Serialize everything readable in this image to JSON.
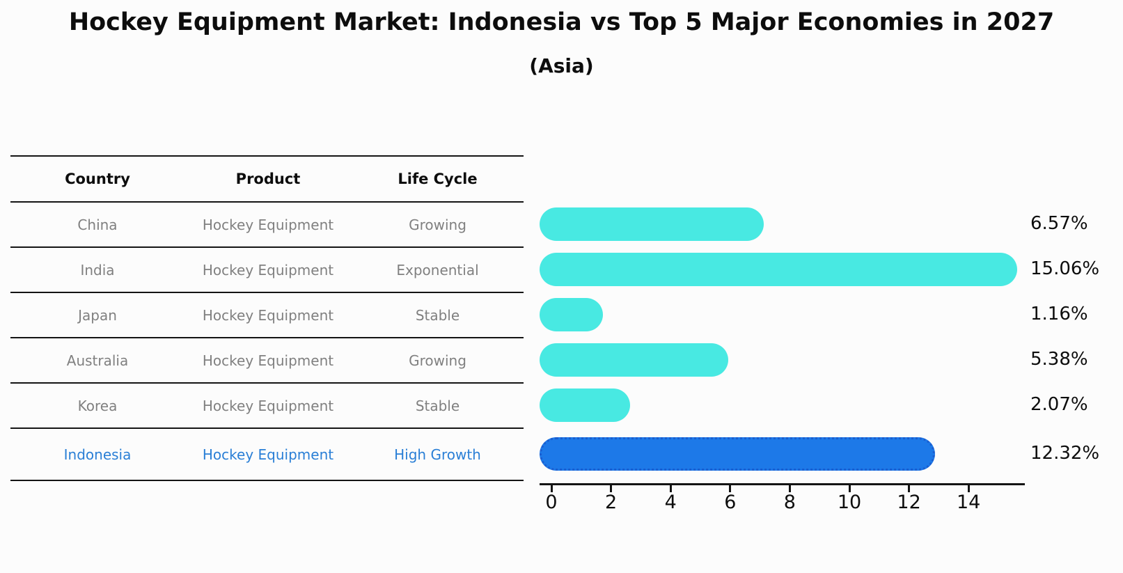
{
  "title": "Hockey Equipment Market: Indonesia vs Top 5 Major Economies in 2027",
  "subtitle": "(Asia)",
  "table": {
    "headers": [
      "Country",
      "Product",
      "Life Cycle"
    ],
    "rows": [
      {
        "country": "China",
        "product": "Hockey Equipment",
        "life_cycle": "Growing",
        "highlight": false
      },
      {
        "country": "India",
        "product": "Hockey Equipment",
        "life_cycle": "Exponential",
        "highlight": false
      },
      {
        "country": "Japan",
        "product": "Hockey Equipment",
        "life_cycle": "Stable",
        "highlight": false
      },
      {
        "country": "Australia",
        "product": "Hockey Equipment",
        "life_cycle": "Growing",
        "highlight": false
      },
      {
        "country": "Korea",
        "product": "Hockey Equipment",
        "life_cycle": "Stable",
        "highlight": false
      },
      {
        "country": "Indonesia",
        "product": "Hockey Equipment",
        "life_cycle": "High Growth",
        "highlight": true
      }
    ]
  },
  "chart_data": {
    "type": "bar",
    "orientation": "horizontal",
    "title": "Hockey Equipment Market: Indonesia vs Top 5 Major Economies in 2027",
    "subtitle": "(Asia)",
    "categories": [
      "China",
      "India",
      "Japan",
      "Australia",
      "Korea",
      "Indonesia"
    ],
    "values": [
      6.57,
      15.06,
      1.16,
      5.38,
      2.07,
      12.32
    ],
    "value_labels": [
      "6.57%",
      "15.06%",
      "1.16%",
      "5.38%",
      "2.07%",
      "12.32%"
    ],
    "xticks": [
      0,
      2,
      4,
      6,
      8,
      10,
      12,
      14
    ],
    "xlim": [
      0,
      15.8
    ],
    "grid": false,
    "legend": false,
    "highlight_index": 5,
    "colors": {
      "bar": "#48e9e2",
      "highlight_bar": "#1d79e8",
      "highlight_border": "#1a5ed0",
      "highlight_text": "#2a7fd6",
      "body_text": "#808080",
      "axis": "#141414"
    }
  }
}
